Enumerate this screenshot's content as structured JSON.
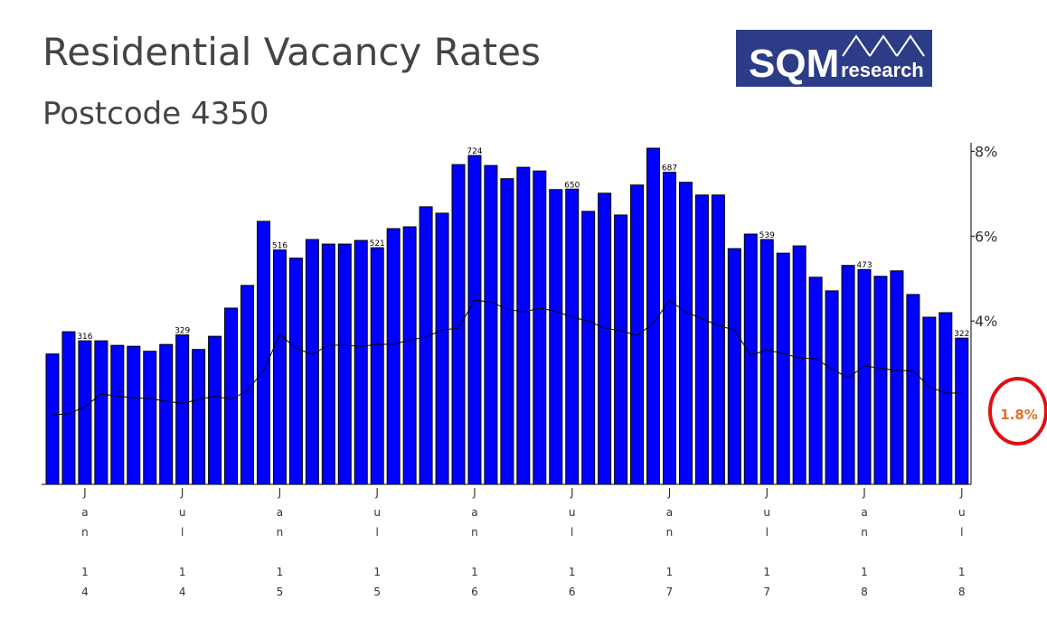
{
  "logo": {
    "text": "SQM",
    "subtext": "research"
  },
  "chart_data": {
    "type": "bar",
    "title": "Residential Vacancy Rates",
    "subtitle": "Postcode 4350",
    "categories": [
      null,
      null,
      "Jan 14",
      null,
      null,
      null,
      null,
      null,
      "Jul 14",
      null,
      null,
      null,
      null,
      null,
      "Jan 15",
      null,
      null,
      null,
      null,
      null,
      "Jul 15",
      null,
      null,
      null,
      null,
      null,
      "Jan 16",
      null,
      null,
      null,
      null,
      null,
      "Jul 16",
      null,
      null,
      null,
      null,
      null,
      "Jan 17",
      null,
      null,
      null,
      null,
      null,
      "Jul 17",
      null,
      null,
      null,
      null,
      null,
      "Jan 18",
      null,
      null,
      null,
      null,
      null,
      "Jul 18"
    ],
    "series": [
      {
        "type": "bar",
        "color": "#0000ff",
        "values": [
          287,
          336,
          316,
          316,
          306,
          304,
          293,
          308,
          329,
          297,
          326,
          388,
          438,
          579,
          516,
          498,
          539,
          529,
          529,
          537,
          521,
          563,
          567,
          611,
          597,
          704,
          724,
          702,
          673,
          698,
          690,
          649,
          650,
          601,
          641,
          593,
          659,
          740,
          687,
          665,
          637,
          637,
          519,
          551,
          539,
          509,
          525,
          456,
          426,
          482,
          473,
          458,
          470,
          418,
          368,
          378,
          322
        ],
        "value_labels": [
          null,
          null,
          "316",
          null,
          null,
          null,
          null,
          null,
          "329",
          null,
          null,
          null,
          null,
          null,
          "516",
          null,
          null,
          null,
          null,
          null,
          "521",
          null,
          null,
          null,
          null,
          null,
          "724",
          null,
          null,
          null,
          null,
          null,
          "650",
          null,
          null,
          null,
          null,
          null,
          "687",
          null,
          null,
          null,
          null,
          null,
          "539",
          null,
          null,
          null,
          null,
          null,
          "473",
          null,
          null,
          null,
          null,
          null,
          "322"
        ]
      },
      {
        "type": "line",
        "color": "#000000",
        "axis": "y2",
        "values": [
          1.79,
          1.81,
          1.98,
          2.28,
          2.23,
          2.19,
          2.17,
          2.11,
          2.06,
          2.15,
          2.23,
          2.15,
          2.36,
          2.83,
          3.68,
          3.36,
          3.21,
          3.43,
          3.43,
          3.4,
          3.45,
          3.45,
          3.55,
          3.62,
          3.79,
          3.83,
          4.49,
          4.45,
          4.28,
          4.21,
          4.3,
          4.23,
          4.09,
          4.0,
          3.83,
          3.77,
          3.66,
          3.94,
          4.49,
          4.21,
          4.06,
          3.89,
          3.79,
          3.19,
          3.32,
          3.23,
          3.13,
          3.11,
          2.87,
          2.66,
          2.94,
          2.89,
          2.83,
          2.83,
          2.45,
          2.3,
          2.3
        ]
      }
    ],
    "ylim": [
      0,
      752
    ],
    "y2lim": [
      0.15,
      8.2
    ],
    "y2ticks": [
      {
        "value": 4,
        "label": "4%"
      },
      {
        "value": 6,
        "label": "6%"
      },
      {
        "value": 8,
        "label": "8%"
      }
    ],
    "annotation": "1.8%"
  }
}
